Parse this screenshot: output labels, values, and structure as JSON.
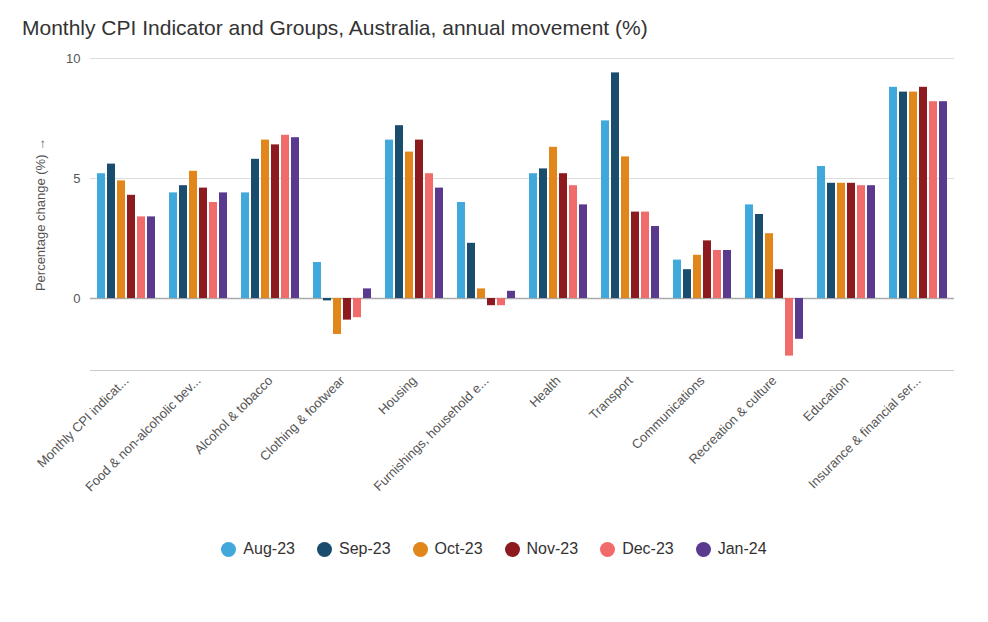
{
  "chart_data": {
    "type": "bar",
    "title": "Monthly CPI Indicator and Groups, Australia, annual movement (%)",
    "y_label": "Percentage change (%)",
    "categories": [
      "Monthly CPI indicat...",
      "Food & non-alcoholic bev...",
      "Alcohol & tobacco",
      "Clothing & footwear",
      "Housing",
      "Furnishings, household e...",
      "Health",
      "Transport",
      "Communications",
      "Recreation & culture",
      "Education",
      "Insurance & financial ser..."
    ],
    "series": [
      {
        "name": "Aug-23",
        "color": "#41a8dc",
        "values": [
          5.2,
          4.4,
          4.4,
          1.5,
          6.6,
          4.0,
          5.2,
          7.4,
          1.6,
          3.9,
          5.5,
          8.8
        ]
      },
      {
        "name": "Sep-23",
        "color": "#1a4c6e",
        "values": [
          5.6,
          4.7,
          5.8,
          -0.1,
          7.2,
          2.3,
          5.4,
          9.4,
          1.2,
          3.5,
          4.8,
          8.6
        ]
      },
      {
        "name": "Oct-23",
        "color": "#e1861b",
        "values": [
          4.9,
          5.3,
          6.6,
          -1.5,
          6.1,
          0.4,
          6.3,
          5.9,
          1.8,
          2.7,
          4.8,
          8.6
        ]
      },
      {
        "name": "Nov-23",
        "color": "#8c1a1e",
        "values": [
          4.3,
          4.6,
          6.4,
          -0.9,
          6.6,
          -0.3,
          5.2,
          3.6,
          2.4,
          1.2,
          4.8,
          8.8
        ]
      },
      {
        "name": "Dec-23",
        "color": "#f26b6b",
        "values": [
          3.4,
          4.0,
          6.8,
          -0.8,
          5.2,
          -0.3,
          4.7,
          3.6,
          2.0,
          -2.4,
          4.7,
          8.2
        ]
      },
      {
        "name": "Jan-24",
        "color": "#5a3a8e",
        "values": [
          3.4,
          4.4,
          6.7,
          0.4,
          4.6,
          0.3,
          3.9,
          3.0,
          2.0,
          -1.7,
          4.7,
          8.2
        ]
      }
    ],
    "ylim": [
      -3,
      10
    ],
    "yticks": [
      0,
      5,
      10
    ],
    "grid": true,
    "legend": "bottom"
  }
}
